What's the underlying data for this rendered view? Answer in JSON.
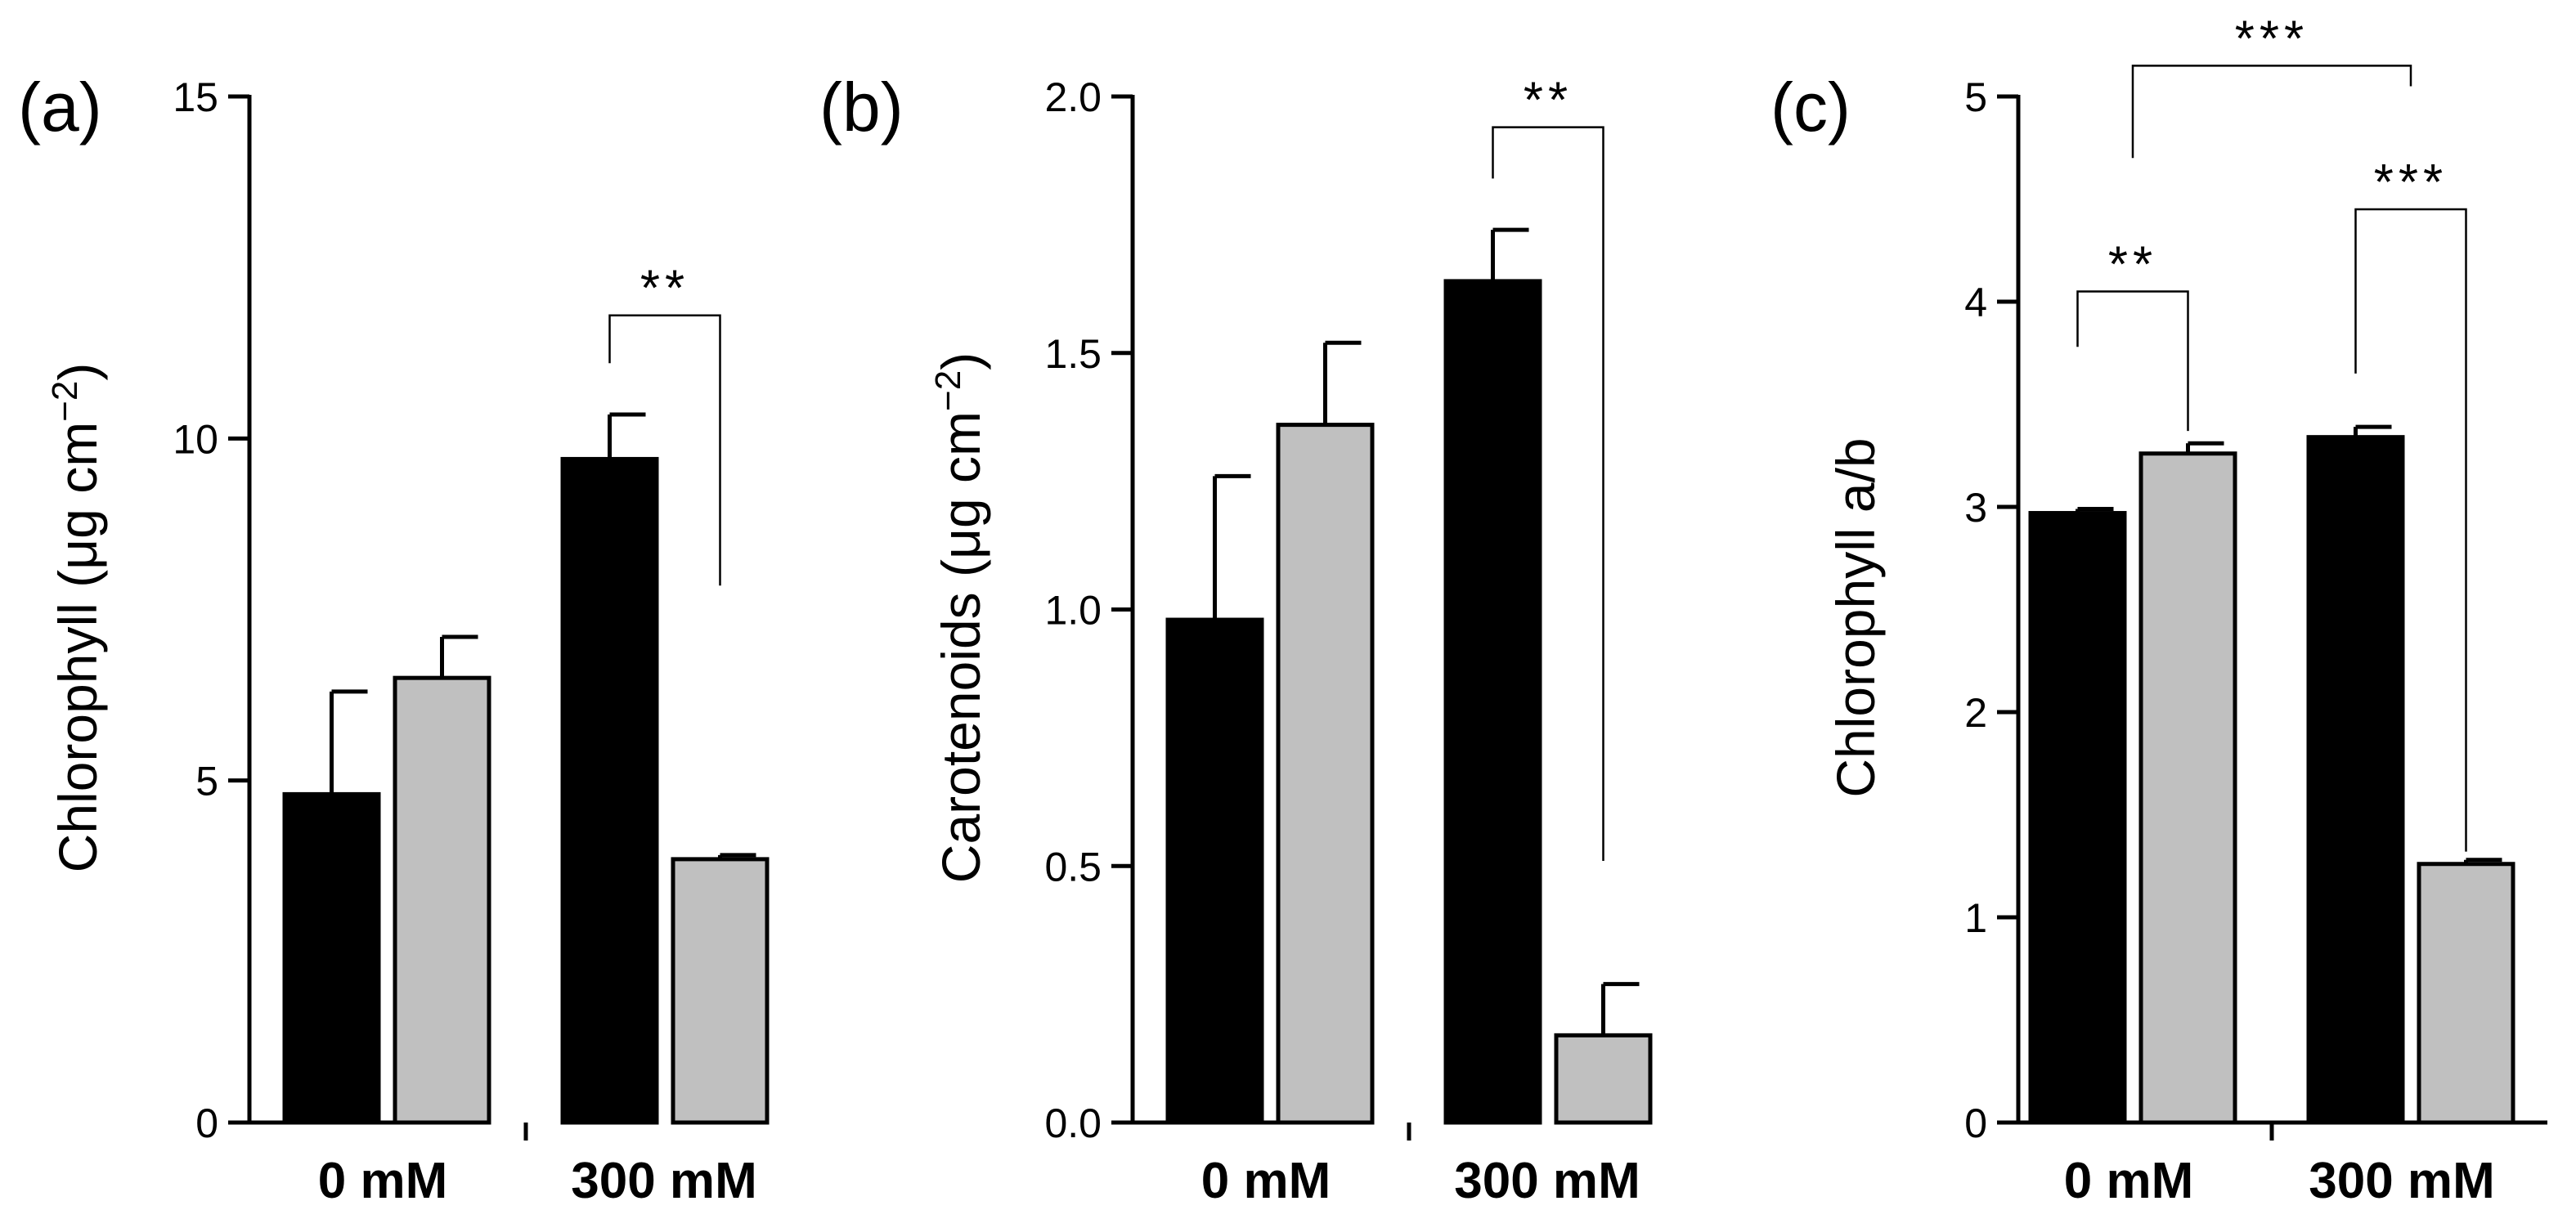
{
  "colors": {
    "series_a": "#000000",
    "series_b": "#c0c0c0",
    "axis": "#000000"
  },
  "chart_data": [
    {
      "type": "bar",
      "panel_label": "(a)",
      "ylabel_main": "Chlorophyll (",
      "ylabel_unit": "μg cm",
      "ylabel_sup": "−2",
      "ylabel_close": ")",
      "ylim": [
        0,
        15
      ],
      "yticks": [
        "0",
        "5",
        "10",
        "15"
      ],
      "categories": [
        "0 mM",
        "300 mM"
      ],
      "series": [
        {
          "name": "black",
          "values": [
            4.8,
            9.7
          ],
          "errors": [
            1.5,
            0.65
          ]
        },
        {
          "name": "gray",
          "values": [
            6.5,
            3.85
          ],
          "errors": [
            0.6,
            0.06
          ]
        }
      ],
      "significance": [
        {
          "label": "**",
          "from": [
            1,
            0
          ],
          "to": [
            1,
            1
          ],
          "y": 11.8,
          "left_drop": 0.7,
          "right_drop": 3.95
        }
      ]
    },
    {
      "type": "bar",
      "panel_label": "(b)",
      "ylabel_main": "Carotenoids (",
      "ylabel_unit": "μg cm",
      "ylabel_sup": "−2",
      "ylabel_close": ")",
      "ylim": [
        0,
        2.0
      ],
      "yticks": [
        "0.0",
        "0.5",
        "1.0",
        "1.5",
        "2.0"
      ],
      "categories": [
        "0 mM",
        "300 mM"
      ],
      "series": [
        {
          "name": "black",
          "values": [
            0.98,
            1.64
          ],
          "errors": [
            0.28,
            0.1
          ]
        },
        {
          "name": "gray",
          "values": [
            1.36,
            0.17
          ],
          "errors": [
            0.16,
            0.1
          ]
        }
      ],
      "significance": [
        {
          "label": "**",
          "from": [
            1,
            0
          ],
          "to": [
            1,
            1
          ],
          "y": 1.94,
          "left_drop": 0.1,
          "right_drop": 1.43
        }
      ]
    },
    {
      "type": "bar",
      "panel_label": "(c)",
      "ylabel_main": "Chlorophyll a/b",
      "ylabel_unit": "",
      "ylabel_sup": "",
      "ylabel_close": "",
      "ylim": [
        0,
        5
      ],
      "yticks": [
        "0",
        "1",
        "2",
        "3",
        "4",
        "5"
      ],
      "categories": [
        "0 mM",
        "300 mM"
      ],
      "series": [
        {
          "name": "black",
          "values": [
            2.97,
            3.34
          ],
          "errors": [
            0.02,
            0.05
          ]
        },
        {
          "name": "gray",
          "values": [
            3.26,
            1.26
          ],
          "errors": [
            0.05,
            0.02
          ]
        }
      ],
      "significance": [
        {
          "label": "**",
          "from": [
            0,
            0
          ],
          "to": [
            0,
            1
          ],
          "y": 4.05,
          "left_drop": 0.27,
          "right_drop": 0.68
        },
        {
          "label": "***",
          "from": [
            1,
            0
          ],
          "to": [
            1,
            1
          ],
          "y": 4.45,
          "left_drop": 0.8,
          "right_drop": 3.13
        },
        {
          "label": "***",
          "from": [
            0,
            0.5
          ],
          "to": [
            1,
            0.5
          ],
          "y": 5.15,
          "left_drop": 0.45,
          "right_drop": 0.1
        }
      ]
    }
  ]
}
